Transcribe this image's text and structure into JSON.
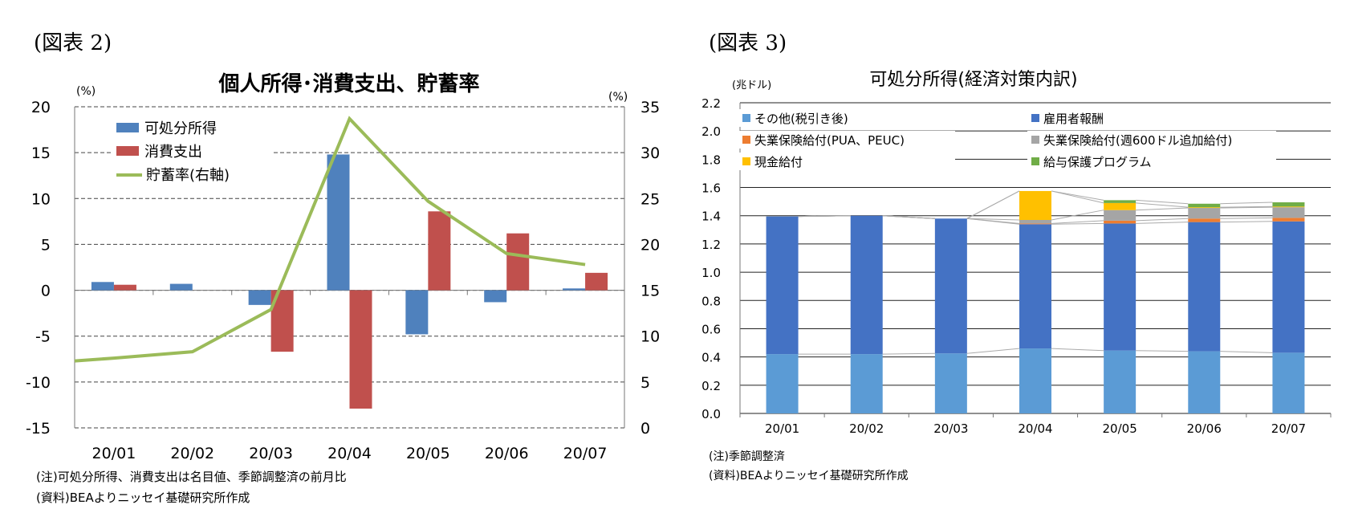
{
  "figure2": {
    "label": "(図表 2)",
    "note1": "(注)可処分所得、消費支出は名目値、季節調整済の前月比",
    "note2": "(資料)BEAよりニッセイ基礎研究所作成"
  },
  "figure3": {
    "label": "(図表 3)",
    "note1": "(注)季節調整済",
    "note2": "(資料)BEAよりニッセイ基礎研究所作成"
  },
  "colors": {
    "disposable": "#4f81bd",
    "consumption": "#c0504d",
    "saving": "#9bbb59",
    "other": "#5b9bd5",
    "employee": "#4472c4",
    "ui_pua": "#ed7d31",
    "ui_600": "#a5a5a5",
    "cash": "#ffc000",
    "ppp": "#70ad47"
  },
  "chart_data": [
    {
      "type": "bar+line",
      "title": "個人所得･消費支出、貯蓄率",
      "y_left_unit": "(%)",
      "y_right_unit": "(%)",
      "categories": [
        "20/01",
        "20/02",
        "20/03",
        "20/04",
        "20/05",
        "20/06",
        "20/07"
      ],
      "ylim_left": [
        -15,
        20
      ],
      "yticks_left": [
        -15,
        -10,
        -5,
        0,
        5,
        10,
        15,
        20
      ],
      "ylim_right": [
        0,
        35
      ],
      "yticks_right": [
        0,
        5,
        10,
        15,
        20,
        25,
        30,
        35
      ],
      "series": [
        {
          "name": "可処分所得",
          "kind": "bar",
          "axis": "left",
          "values": [
            0.9,
            0.7,
            -1.6,
            14.8,
            -4.8,
            -1.3,
            0.2
          ]
        },
        {
          "name": "消費支出",
          "kind": "bar",
          "axis": "left",
          "values": [
            0.6,
            0.0,
            -6.7,
            -12.9,
            8.6,
            6.2,
            1.9
          ]
        },
        {
          "name": "貯蓄率(右軸)",
          "kind": "line",
          "axis": "right",
          "values": [
            7.6,
            8.3,
            12.9,
            33.7,
            24.7,
            19.0,
            17.8
          ],
          "start": 7.3
        }
      ],
      "legend": "top-left"
    },
    {
      "type": "stacked-bar",
      "title": "可処分所得(経済対策内訳)",
      "y_unit": "(兆ドル)",
      "categories": [
        "20/01",
        "20/02",
        "20/03",
        "20/04",
        "20/05",
        "20/06",
        "20/07"
      ],
      "ylim": [
        0,
        2.2
      ],
      "yticks": [
        "0.0",
        "0.2",
        "0.4",
        "0.6",
        "0.8",
        "1.0",
        "1.2",
        "1.4",
        "1.6",
        "1.8",
        "2.0",
        "2.2"
      ],
      "series": [
        {
          "name": "その他(税引き後)",
          "values": [
            0.42,
            0.42,
            0.425,
            0.46,
            0.445,
            0.44,
            0.43
          ]
        },
        {
          "name": "雇用者報酬",
          "values": [
            0.975,
            0.98,
            0.955,
            0.88,
            0.9,
            0.915,
            0.93
          ]
        },
        {
          "name": "失業保険給付(PUA、PEUC)",
          "values": [
            0,
            0,
            0,
            0.005,
            0.02,
            0.025,
            0.025
          ]
        },
        {
          "name": "失業保険給付(週600ドル追加給付)",
          "values": [
            0,
            0,
            0,
            0.025,
            0.075,
            0.075,
            0.075
          ]
        },
        {
          "name": "現金給付",
          "values": [
            0,
            0,
            0,
            0.205,
            0.05,
            0.005,
            0.005
          ]
        },
        {
          "name": "給与保護プログラム",
          "values": [
            0,
            0,
            0,
            0,
            0.02,
            0.025,
            0.03
          ]
        }
      ],
      "legend": "top"
    }
  ]
}
